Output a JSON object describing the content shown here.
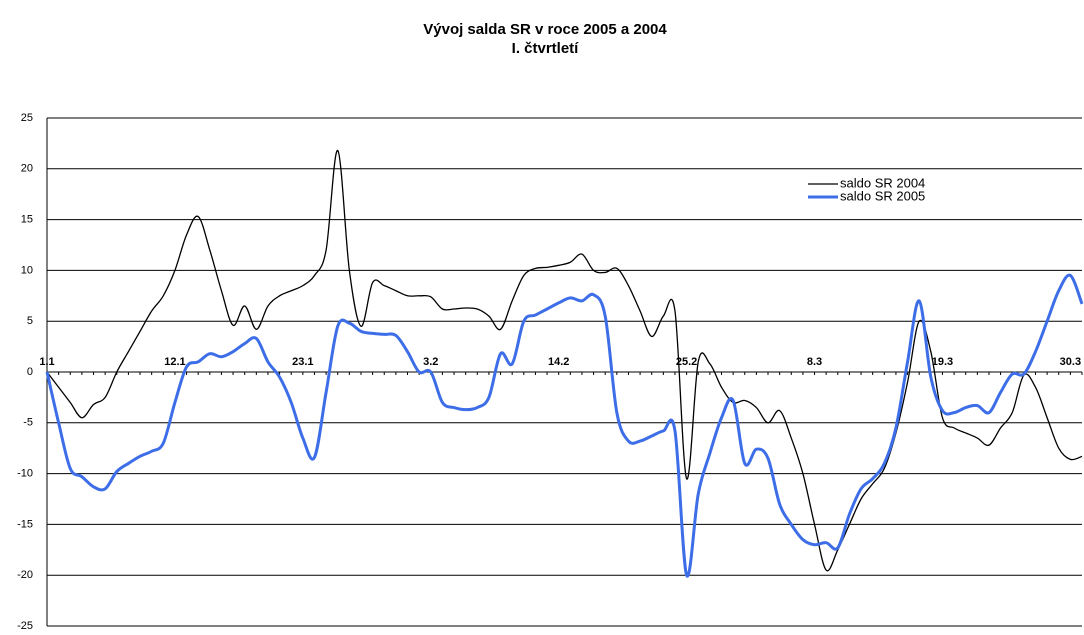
{
  "chart_data": {
    "type": "line",
    "title": "Vývoj salda SR v roce 2005 a 2004",
    "subtitle": "I. čtvrtletí",
    "categories": [
      "1.1",
      null,
      null,
      null,
      null,
      null,
      null,
      null,
      null,
      null,
      null,
      "12.1",
      null,
      null,
      null,
      null,
      null,
      null,
      null,
      null,
      null,
      null,
      "23.1",
      null,
      null,
      null,
      null,
      null,
      null,
      null,
      null,
      null,
      null,
      "3.2",
      null,
      null,
      null,
      null,
      null,
      null,
      null,
      null,
      null,
      null,
      "14.2",
      null,
      null,
      null,
      null,
      null,
      null,
      null,
      null,
      null,
      null,
      "25.2",
      null,
      null,
      null,
      null,
      null,
      null,
      null,
      null,
      null,
      null,
      "8.3",
      null,
      null,
      null,
      null,
      null,
      null,
      null,
      null,
      null,
      null,
      "19.3",
      null,
      null,
      null,
      null,
      null,
      null,
      null,
      null,
      null,
      null,
      "30.3",
      null
    ],
    "series": [
      {
        "name": "saldo SR 2004",
        "color": "#000000",
        "values": [
          0,
          -1.5,
          -3,
          -4.5,
          -3.2,
          -2.5,
          0,
          2,
          4,
          6,
          7.5,
          10,
          13.5,
          15.3,
          12,
          8,
          4.6,
          6.5,
          4.2,
          6.5,
          7.5,
          8,
          8.5,
          9.5,
          12,
          21.8,
          10,
          4.5,
          8.8,
          8.5,
          8,
          7.5,
          7.5,
          7.4,
          6.2,
          6.2,
          6.3,
          6.2,
          5.5,
          4.2,
          7,
          9.5,
          10.2,
          10.3,
          10.5,
          10.8,
          11.6,
          10,
          9.8,
          10.2,
          8.5,
          6,
          3.5,
          5.5,
          6,
          -10.5,
          1,
          0.8,
          -1.5,
          -3,
          -2.8,
          -3.5,
          -5,
          -3.8,
          -6.5,
          -10,
          -15,
          -19.5,
          -17.5,
          -15,
          -12.5,
          -11,
          -9.5,
          -6,
          -1,
          5,
          2,
          -4.5,
          -5.5,
          -6,
          -6.5,
          -7.2,
          -5.5,
          -4,
          -0.3,
          -1.5,
          -4.5,
          -7.5,
          -8.6,
          -8.3
        ]
      },
      {
        "name": "saldo SR 2005",
        "color": "#3d6ee8",
        "values": [
          0,
          -5,
          -9.5,
          -10.3,
          -11.3,
          -11.5,
          -9.8,
          -9,
          -8.3,
          -7.8,
          -7,
          -3,
          0.5,
          1,
          1.8,
          1.5,
          2,
          2.8,
          3.3,
          1,
          -0.5,
          -3,
          -6.5,
          -8.4,
          -2,
          4.5,
          4.8,
          4,
          3.8,
          3.7,
          3.6,
          2,
          0,
          0,
          -3,
          -3.5,
          -3.7,
          -3.5,
          -2.5,
          1.8,
          0.8,
          5,
          5.6,
          6.2,
          6.8,
          7.3,
          7,
          7.6,
          5.5,
          -4,
          -6.8,
          -6.8,
          -6.3,
          -5.8,
          -5.8,
          -20,
          -12,
          -8,
          -4.5,
          -2.8,
          -9,
          -7.6,
          -8.5,
          -13,
          -15,
          -16.5,
          -17,
          -16.8,
          -17.3,
          -14,
          -11.5,
          -10.5,
          -9,
          -5.5,
          1,
          7,
          -0.5,
          -3.8,
          -4,
          -3.5,
          -3.3,
          -4,
          -2,
          -0.2,
          -0.2,
          2,
          5,
          8,
          9.5,
          6.7
        ]
      }
    ],
    "ylim": [
      -25,
      25
    ],
    "yticks": [
      -25,
      -20,
      -15,
      -10,
      -5,
      0,
      5,
      10,
      15,
      20,
      25
    ],
    "grid": true,
    "legend": "top-right"
  }
}
